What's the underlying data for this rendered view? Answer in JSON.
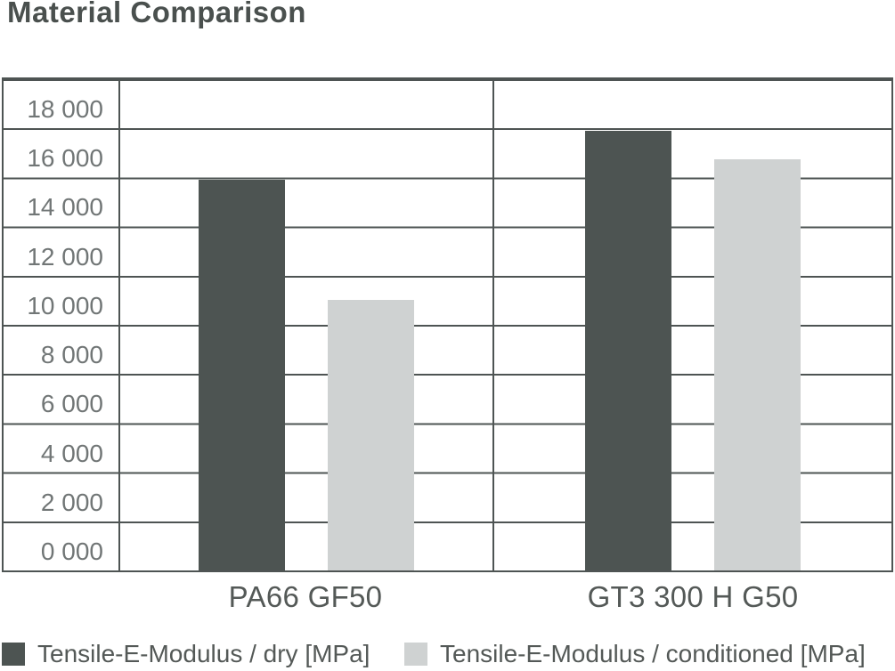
{
  "title": "Material Comparison",
  "colors": {
    "dry_bar": "#4d5452",
    "conditioned_bar": "#cfd2d2",
    "gridline": "#4e5453",
    "title_text": "#4a504e",
    "axis_tick_text": "#717676",
    "label_text": "#545957",
    "background": "#ffffff"
  },
  "chart_data": {
    "type": "bar",
    "title": "Material Comparison",
    "categories": [
      "PA66 GF50",
      "GT3 300 H G50"
    ],
    "series": [
      {
        "name": "Tensile-E-Modulus / dry [MPa]",
        "color": "#4d5452",
        "values": [
          15900,
          17900
        ]
      },
      {
        "name": "Tensile-E-Modulus / conditioned [MPa]",
        "color": "#cfd2d2",
        "values": [
          11000,
          16750
        ]
      }
    ],
    "xlabel": "",
    "ylabel": "",
    "ylim": [
      0,
      20000
    ],
    "y_tick_step": 2000,
    "y_tick_labels": [
      "0 000",
      "2 000",
      "4 000",
      "6 000",
      "8 000",
      "10 000",
      "12 000",
      "14 000",
      "16 000",
      "18 000"
    ],
    "grid": true,
    "legend_position": "bottom"
  }
}
